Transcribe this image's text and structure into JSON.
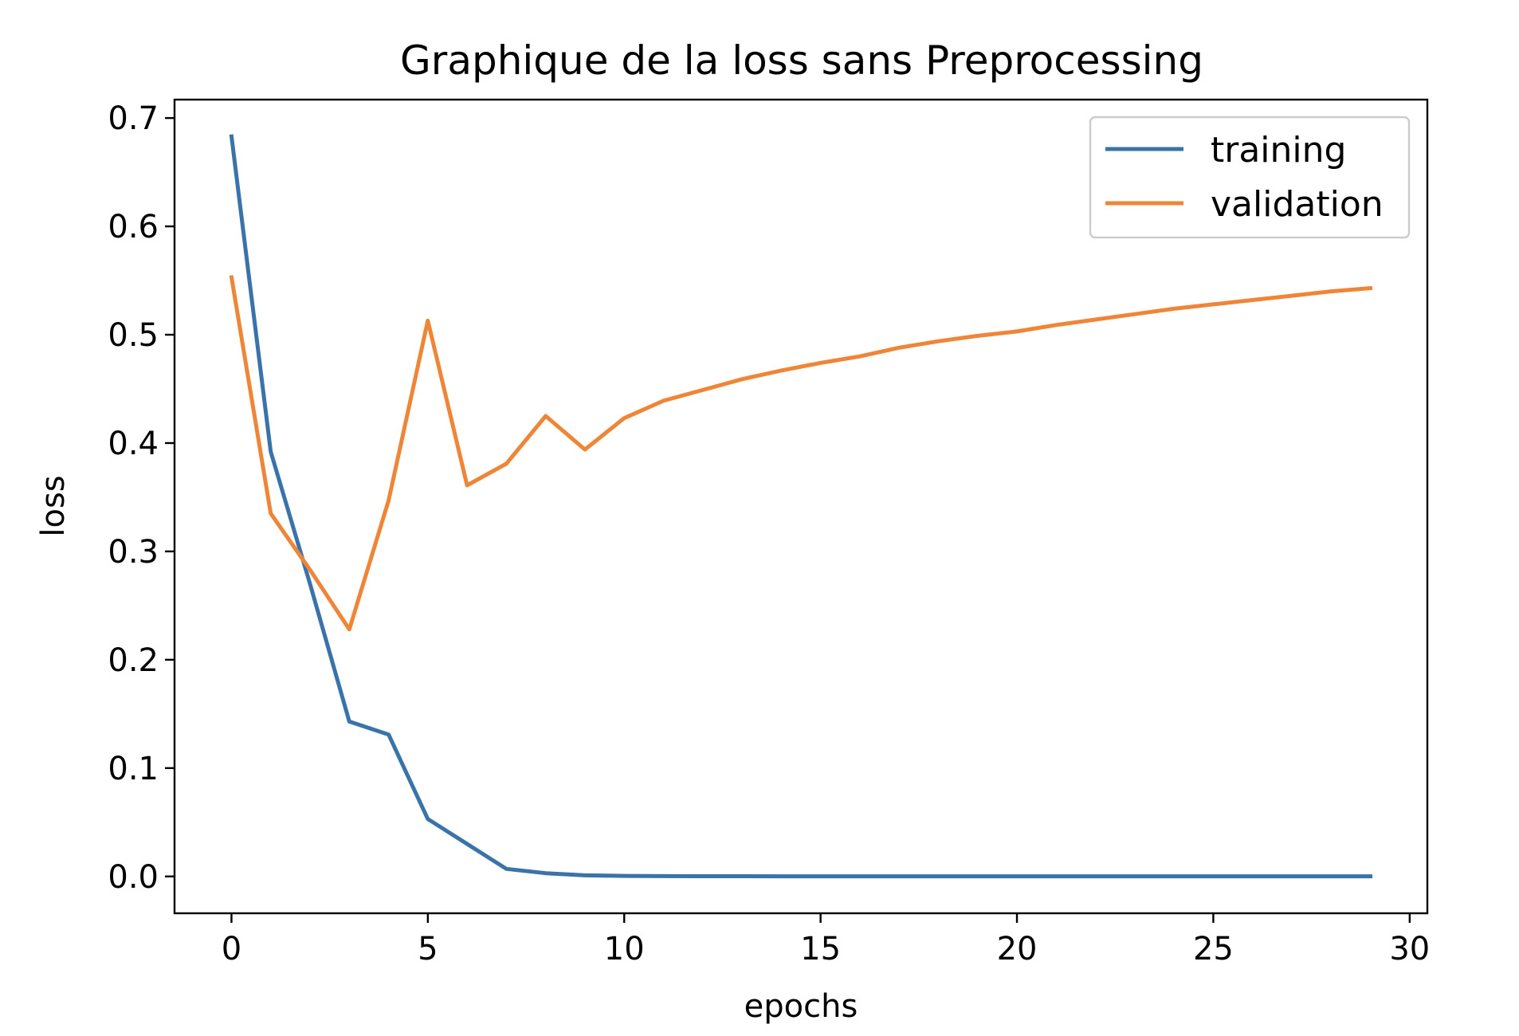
{
  "chart_data": {
    "type": "line",
    "title": "Graphique de la loss sans Preprocessing",
    "xlabel": "epochs",
    "ylabel": "loss",
    "xlim": [
      -1.45,
      30.45
    ],
    "ylim": [
      -0.034,
      0.717
    ],
    "grid": false,
    "legend_position": "top-right",
    "x": [
      0,
      1,
      2,
      3,
      4,
      5,
      6,
      7,
      8,
      9,
      10,
      11,
      12,
      13,
      14,
      15,
      16,
      17,
      18,
      19,
      20,
      21,
      22,
      23,
      24,
      25,
      26,
      27,
      28,
      29
    ],
    "x_ticks": {
      "values": [
        0,
        5,
        10,
        15,
        20,
        25,
        30
      ],
      "labels": [
        "0",
        "5",
        "10",
        "15",
        "20",
        "25",
        "30"
      ]
    },
    "y_ticks": {
      "values": [
        0.0,
        0.1,
        0.2,
        0.3,
        0.4,
        0.5,
        0.6,
        0.7
      ],
      "labels": [
        "0.0",
        "0.1",
        "0.2",
        "0.3",
        "0.4",
        "0.5",
        "0.6",
        "0.7"
      ]
    },
    "series": [
      {
        "name": "training",
        "color": "#3a73aa",
        "values": [
          0.683,
          0.392,
          0.27,
          0.143,
          0.131,
          0.053,
          0.03,
          0.007,
          0.003,
          0.001,
          0.0005,
          0.0003,
          0.0002,
          0.0002,
          0.0001,
          0.0001,
          0.0001,
          0.0001,
          0.0001,
          0.0001,
          0.0001,
          0.0001,
          0.0001,
          0.0001,
          0.0001,
          0.0001,
          0.0001,
          0.0001,
          0.0001,
          0.0001
        ]
      },
      {
        "name": "validation",
        "color": "#ee8537",
        "values": [
          0.553,
          0.335,
          0.283,
          0.228,
          0.347,
          0.513,
          0.361,
          0.381,
          0.425,
          0.394,
          0.423,
          0.439,
          0.449,
          0.459,
          0.467,
          0.474,
          0.48,
          0.488,
          0.494,
          0.499,
          0.503,
          0.509,
          0.514,
          0.519,
          0.524,
          0.528,
          0.532,
          0.536,
          0.54,
          0.543
        ]
      }
    ]
  }
}
